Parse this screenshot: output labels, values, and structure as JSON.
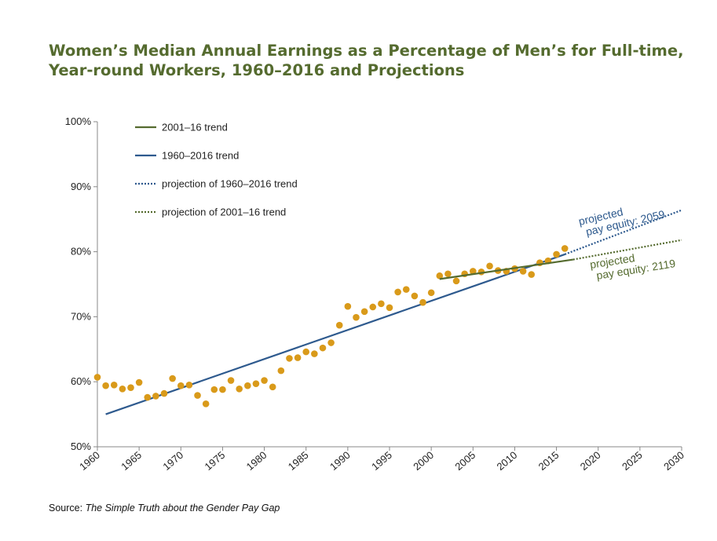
{
  "title_line1": "Women’s Median Annual Earnings as a Percentage of Men’s for Full-time,",
  "title_line2": "Year-round Workers, 1960–2016 and Projections",
  "source_prefix": "Source: ",
  "source_title": "The Simple Truth about the Gender Pay Gap",
  "colors": {
    "title": "#556b2f",
    "trend_1960": "#2e5a8e",
    "trend_2001": "#556b2f",
    "points": "#d99a1a",
    "axis": "#888888"
  },
  "chart_data": {
    "type": "scatter",
    "xlim": [
      1960,
      2030
    ],
    "ylim": [
      50,
      100
    ],
    "x_ticks": [
      "1960",
      "1965",
      "1970",
      "1975",
      "1980",
      "1985",
      "1990",
      "1995",
      "2000",
      "2005",
      "2010",
      "2015",
      "2020",
      "2025",
      "2030"
    ],
    "y_ticks": [
      "50%",
      "60%",
      "70%",
      "80%",
      "90%",
      "100%"
    ],
    "legend": [
      {
        "label": "2001–16 trend",
        "style": "solid",
        "color": "#556b2f"
      },
      {
        "label": "1960–2016 trend",
        "style": "solid",
        "color": "#2e5a8e"
      },
      {
        "label": "projection of 1960–2016 trend",
        "style": "dotted",
        "color": "#2e5a8e"
      },
      {
        "label": "projection of 2001–16 trend",
        "style": "dotted",
        "color": "#556b2f"
      }
    ],
    "points": [
      [
        1960,
        60.7
      ],
      [
        1961,
        59.4
      ],
      [
        1962,
        59.5
      ],
      [
        1963,
        58.9
      ],
      [
        1964,
        59.1
      ],
      [
        1965,
        59.9
      ],
      [
        1966,
        57.6
      ],
      [
        1967,
        57.8
      ],
      [
        1968,
        58.2
      ],
      [
        1969,
        60.5
      ],
      [
        1970,
        59.4
      ],
      [
        1971,
        59.5
      ],
      [
        1972,
        57.9
      ],
      [
        1973,
        56.6
      ],
      [
        1974,
        58.8
      ],
      [
        1975,
        58.8
      ],
      [
        1976,
        60.2
      ],
      [
        1977,
        58.9
      ],
      [
        1978,
        59.4
      ],
      [
        1979,
        59.7
      ],
      [
        1980,
        60.2
      ],
      [
        1981,
        59.2
      ],
      [
        1982,
        61.7
      ],
      [
        1983,
        63.6
      ],
      [
        1984,
        63.7
      ],
      [
        1985,
        64.6
      ],
      [
        1986,
        64.3
      ],
      [
        1987,
        65.2
      ],
      [
        1988,
        66.0
      ],
      [
        1989,
        68.7
      ],
      [
        1990,
        71.6
      ],
      [
        1991,
        69.9
      ],
      [
        1992,
        70.8
      ],
      [
        1993,
        71.5
      ],
      [
        1994,
        72.0
      ],
      [
        1995,
        71.4
      ],
      [
        1996,
        73.8
      ],
      [
        1997,
        74.2
      ],
      [
        1998,
        73.2
      ],
      [
        1999,
        72.2
      ],
      [
        2000,
        73.7
      ],
      [
        2001,
        76.3
      ],
      [
        2002,
        76.6
      ],
      [
        2003,
        75.5
      ],
      [
        2004,
        76.6
      ],
      [
        2005,
        77.0
      ],
      [
        2006,
        76.9
      ],
      [
        2007,
        77.8
      ],
      [
        2008,
        77.1
      ],
      [
        2009,
        77.0
      ],
      [
        2010,
        77.4
      ],
      [
        2011,
        77.0
      ],
      [
        2012,
        76.5
      ],
      [
        2013,
        78.3
      ],
      [
        2014,
        78.6
      ],
      [
        2015,
        79.6
      ],
      [
        2016,
        80.5
      ]
    ],
    "trend_1960_2016": {
      "start": [
        1961,
        55.0
      ],
      "end": [
        2016,
        79.6
      ]
    },
    "projection_1960_2016": {
      "start": [
        2016,
        79.6
      ],
      "end": [
        2030,
        86.4
      ]
    },
    "trend_2001_16": {
      "start": [
        2001,
        75.8
      ],
      "end": [
        2017,
        78.8
      ]
    },
    "projection_2001_16": {
      "start": [
        2017,
        78.8
      ],
      "end": [
        2030,
        81.8
      ]
    },
    "annotations": [
      {
        "line1": "projected",
        "line2": "pay equity: 2059",
        "color": "#2e5a8e"
      },
      {
        "line1": "projected",
        "line2": "pay equity: 2119",
        "color": "#556b2f"
      }
    ]
  }
}
